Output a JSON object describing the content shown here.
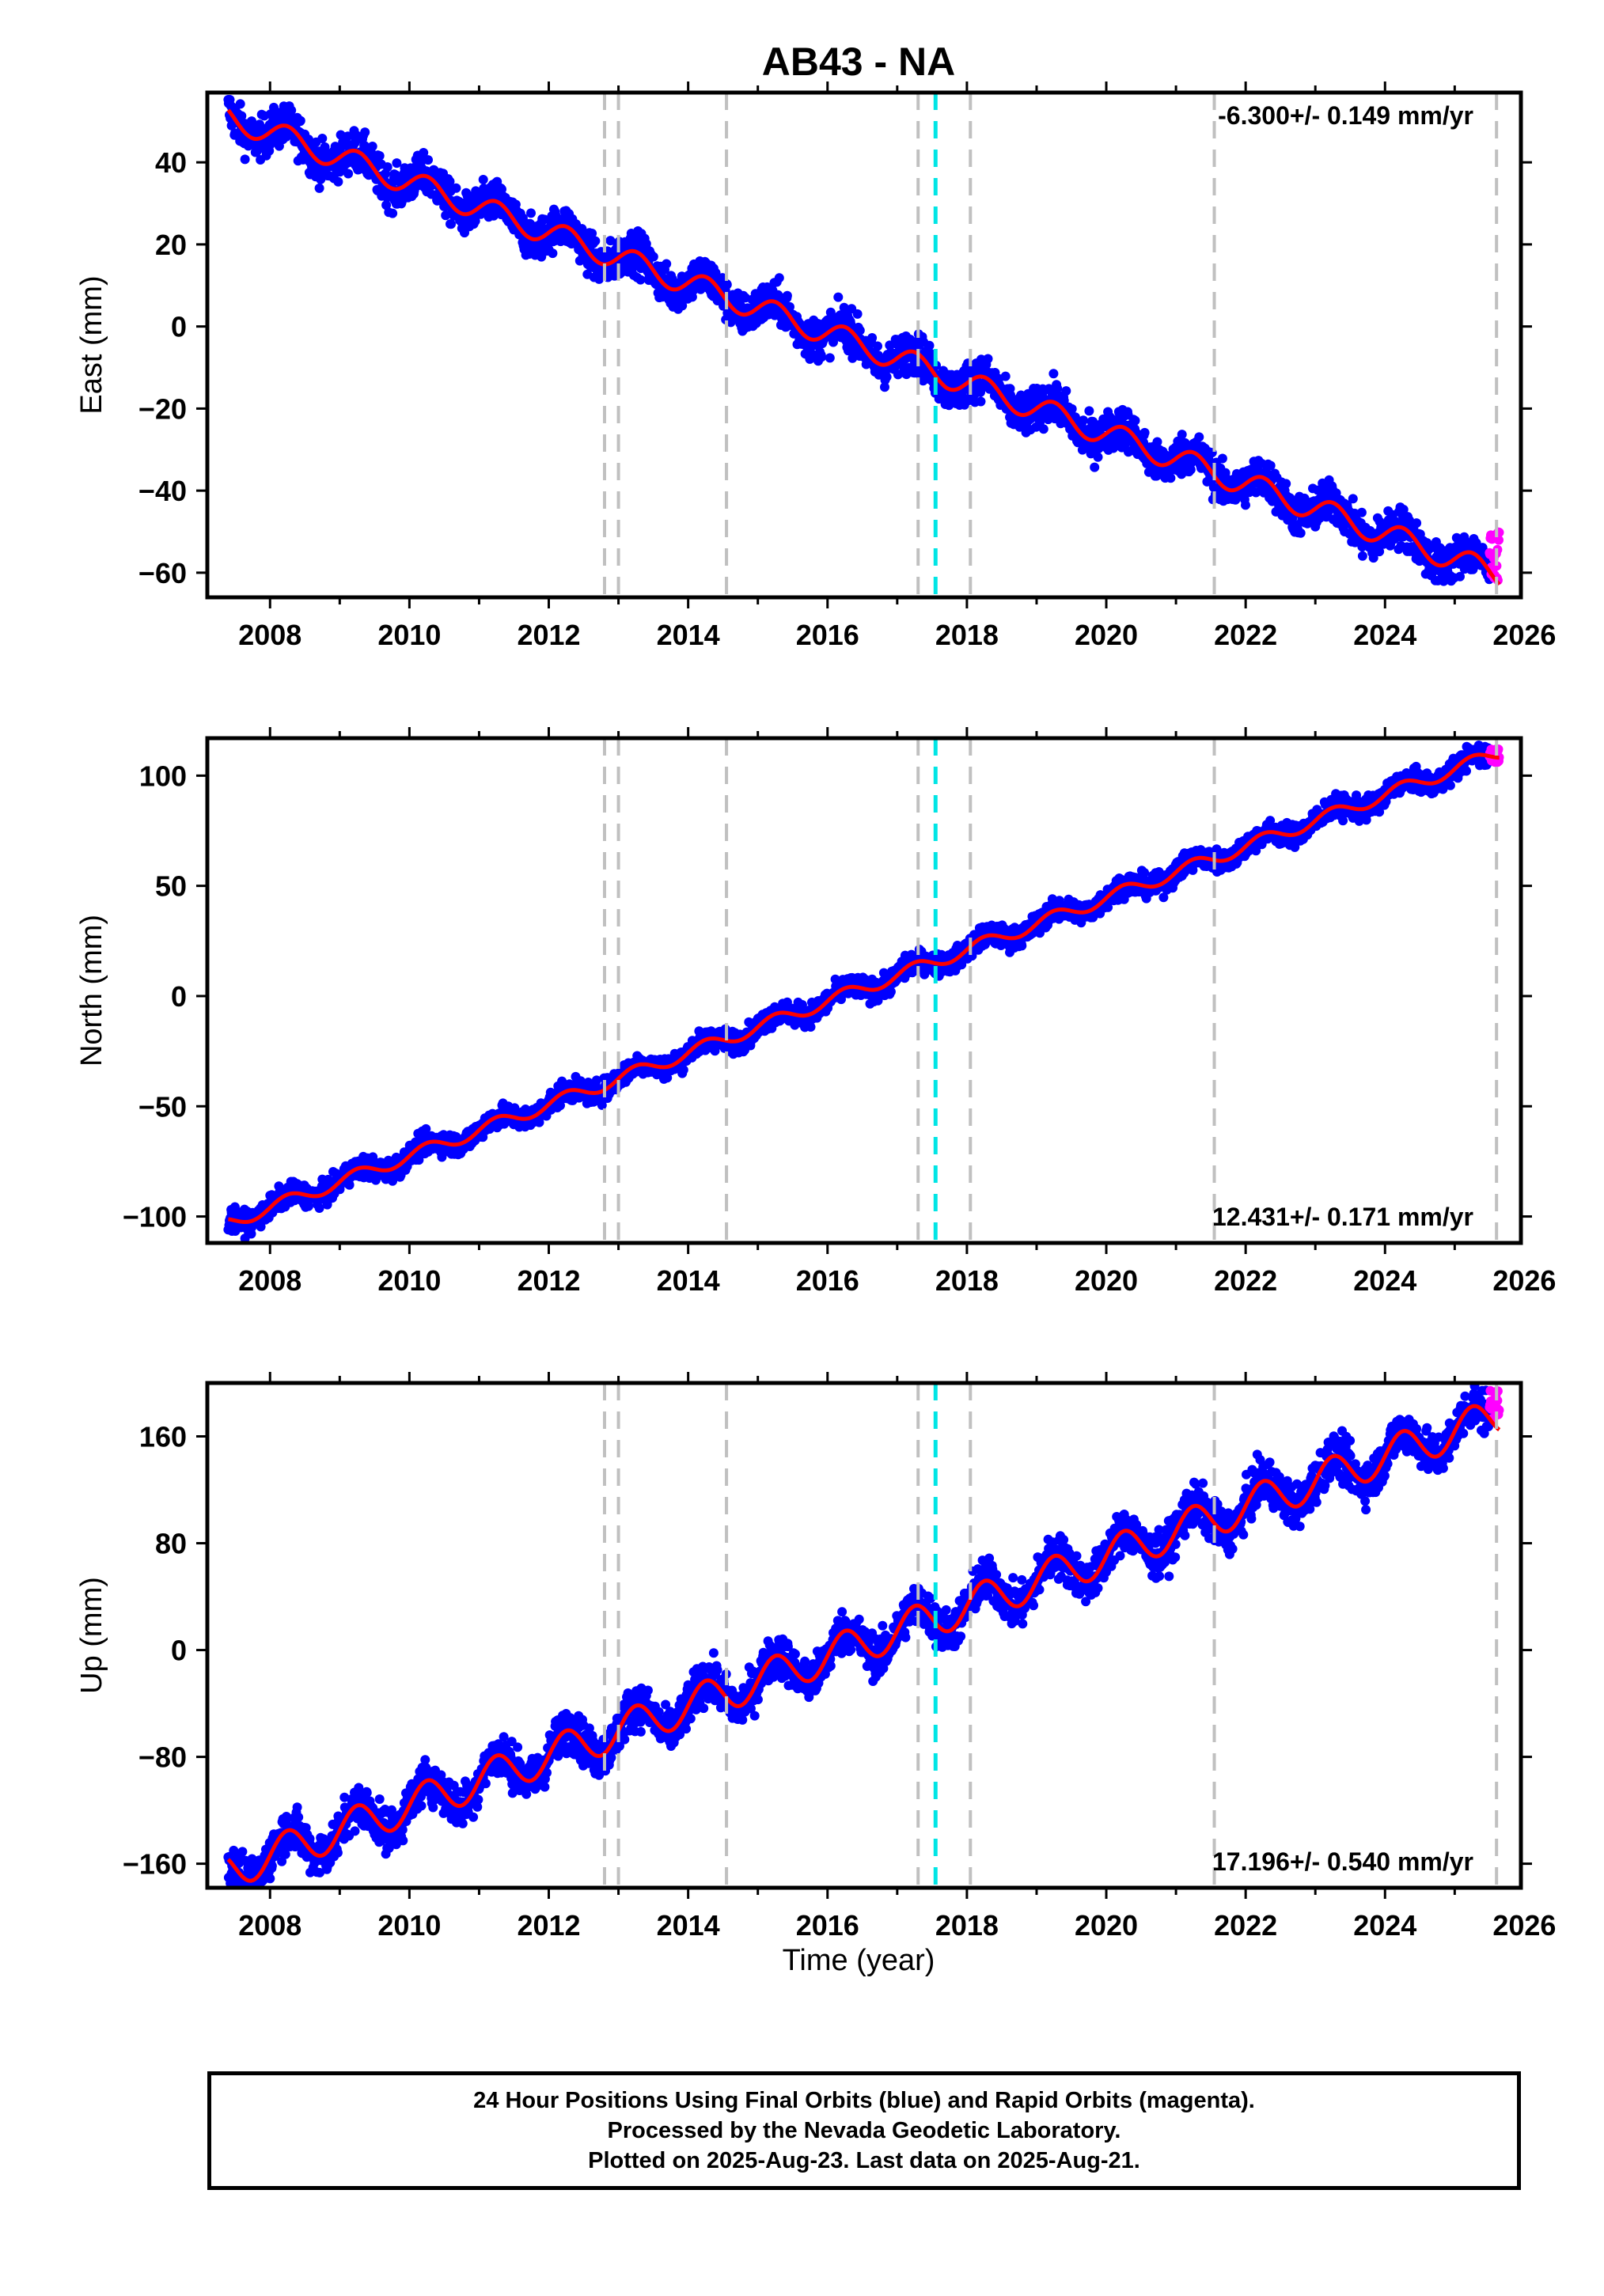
{
  "title": "AB43 - NA",
  "xlabel": "Time (year)",
  "colors": {
    "final_orbits": "#0000ff",
    "rapid_orbits": "#ff00ff",
    "model_fit": "#ff0000",
    "offset_line": "#c0c0c0",
    "event_line": "#00e5e5"
  },
  "chart_data": [
    {
      "type": "scatter",
      "panel": "east",
      "ylabel": "East (mm)",
      "rate_label": "-6.300+/- 0.149 mm/yr",
      "rate_label_position": "top-right",
      "xlim": [
        2007.1,
        2025.95
      ],
      "ylim": [
        -66,
        57
      ],
      "x_ticks": [
        2008,
        2010,
        2012,
        2014,
        2016,
        2018,
        2020,
        2022,
        2024,
        2026
      ],
      "y_ticks": [
        40,
        20,
        0,
        -20,
        -40,
        -60
      ],
      "start": {
        "x": 2007.4,
        "y": 51
      },
      "end": {
        "x": 2025.55,
        "y": -60
      },
      "rate_mm_per_yr": -6.3,
      "seasonal_amplitude_mm": 3,
      "series": [
        {
          "name": "Final Orbits (blue)",
          "x_range": [
            2007.4,
            2025.5
          ],
          "scatter_mm": 2.5
        },
        {
          "name": "Rapid Orbits (magenta)",
          "x_range": [
            2025.5,
            2025.64
          ],
          "y_range": [
            -62,
            -50
          ]
        }
      ],
      "gray_dashed_lines": [
        2012.8,
        2013.0,
        2014.55,
        2017.3,
        2018.05,
        2021.55,
        2025.6
      ],
      "cyan_dashed_lines": [
        2017.55
      ]
    },
    {
      "type": "scatter",
      "panel": "north",
      "ylabel": "North (mm)",
      "rate_label": "12.431+/- 0.171 mm/yr",
      "rate_label_position": "bottom-right",
      "xlim": [
        2007.1,
        2025.95
      ],
      "ylim": [
        -112,
        117
      ],
      "x_ticks": [
        2008,
        2010,
        2012,
        2014,
        2016,
        2018,
        2020,
        2022,
        2024,
        2026
      ],
      "y_ticks": [
        100,
        50,
        0,
        -50,
        -100
      ],
      "start": {
        "x": 2007.4,
        "y": -103
      },
      "end": {
        "x": 2025.6,
        "y": 110
      },
      "rate_mm_per_yr": 12.431,
      "seasonal_amplitude_mm": 3,
      "series": [
        {
          "name": "Final Orbits (blue)",
          "x_range": [
            2007.4,
            2025.5
          ],
          "scatter_mm": 2.5
        },
        {
          "name": "Rapid Orbits (magenta)",
          "x_range": [
            2025.5,
            2025.64
          ],
          "y_range": [
            106,
            112
          ]
        }
      ],
      "gray_dashed_lines": [
        2012.8,
        2013.0,
        2014.55,
        2017.3,
        2018.05,
        2021.55,
        2025.6
      ],
      "cyan_dashed_lines": [
        2017.55
      ]
    },
    {
      "type": "scatter",
      "panel": "up",
      "ylabel": "Up (mm)",
      "rate_label": "17.196+/- 0.540 mm/yr",
      "rate_label_position": "bottom-right",
      "xlim": [
        2007.1,
        2025.95
      ],
      "ylim": [
        -178,
        200
      ],
      "x_ticks": [
        2008,
        2010,
        2012,
        2014,
        2016,
        2018,
        2020,
        2022,
        2024,
        2026
      ],
      "y_ticks": [
        160,
        80,
        0,
        -80,
        -160
      ],
      "start": {
        "x": 2007.4,
        "y": -165
      },
      "end": {
        "x": 2025.6,
        "y": 175
      },
      "rate_mm_per_yr": 17.196,
      "seasonal_amplitude_mm": 14,
      "series": [
        {
          "name": "Final Orbits (blue)",
          "x_range": [
            2007.4,
            2025.5
          ],
          "scatter_mm": 8
        },
        {
          "name": "Rapid Orbits (magenta)",
          "x_range": [
            2025.5,
            2025.64
          ],
          "y_range": [
            172,
            195
          ]
        }
      ],
      "gray_dashed_lines": [
        2012.8,
        2013.0,
        2014.55,
        2017.3,
        2018.05,
        2021.55,
        2025.6
      ],
      "cyan_dashed_lines": [
        2017.55
      ]
    }
  ],
  "footer": {
    "line1": "24 Hour Positions Using Final Orbits (blue) and Rapid Orbits (magenta).",
    "line2": "Processed by the Nevada Geodetic Laboratory.",
    "line3": "Plotted on 2025-Aug-23. Last data on 2025-Aug-21."
  }
}
